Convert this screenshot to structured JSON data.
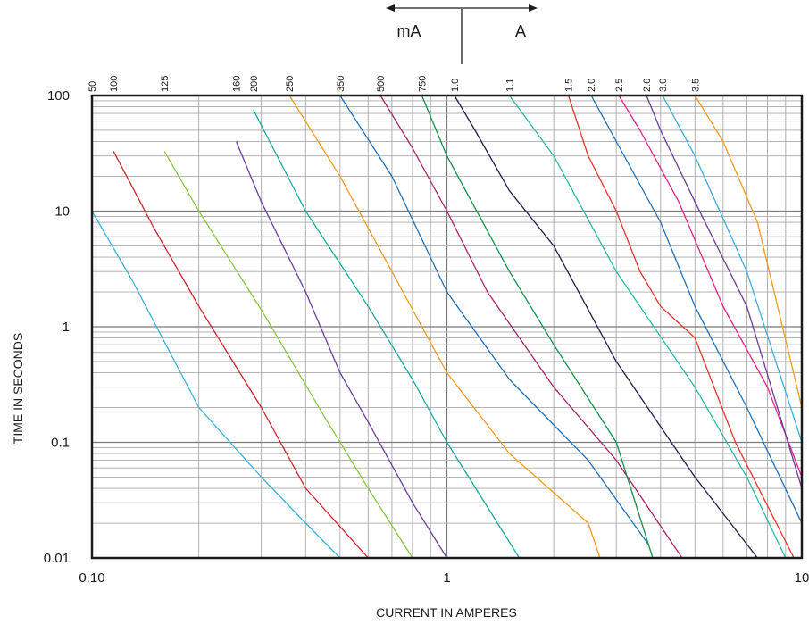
{
  "chart_data": {
    "type": "line",
    "xlabel": "CURRENT IN AMPERES",
    "ylabel": "TIME IN SECONDS",
    "x_scale": "log",
    "y_scale": "log",
    "xlim": [
      0.1,
      10
    ],
    "ylim": [
      0.01,
      100
    ],
    "x_tick_labels": [
      {
        "value": 0.1,
        "label": "0.10"
      },
      {
        "value": 1,
        "label": "1"
      },
      {
        "value": 10,
        "label": "10"
      }
    ],
    "y_tick_labels": [
      {
        "value": 100,
        "label": "100"
      },
      {
        "value": 10,
        "label": "10"
      },
      {
        "value": 1,
        "label": "1"
      },
      {
        "value": 0.1,
        "label": "0.1"
      },
      {
        "value": 0.01,
        "label": "0.01"
      }
    ],
    "unit_labels": {
      "left": "mA",
      "right": "A"
    },
    "grid": true,
    "series": [
      {
        "name": "50",
        "color": "#3ab0d9",
        "label_x": 0.1,
        "points": [
          [
            0.1,
            10
          ],
          [
            0.13,
            2.5
          ],
          [
            0.2,
            0.2
          ],
          [
            0.3,
            0.05
          ],
          [
            0.4,
            0.02
          ],
          [
            0.5,
            0.01
          ]
        ]
      },
      {
        "name": "100",
        "color": "#c8242f",
        "label_x": 0.115,
        "points": [
          [
            0.115,
            33
          ],
          [
            0.15,
            7
          ],
          [
            0.2,
            1.5
          ],
          [
            0.3,
            0.2
          ],
          [
            0.4,
            0.04
          ],
          [
            0.6,
            0.01
          ]
        ]
      },
      {
        "name": "125",
        "color": "#8bc540",
        "label_x": 0.16,
        "points": [
          [
            0.16,
            33
          ],
          [
            0.2,
            10
          ],
          [
            0.3,
            1.4
          ],
          [
            0.45,
            0.17
          ],
          [
            0.6,
            0.04
          ],
          [
            0.8,
            0.01
          ]
        ]
      },
      {
        "name": "160",
        "color": "#6a3d9a",
        "label_x": 0.255,
        "points": [
          [
            0.255,
            40
          ],
          [
            0.3,
            12
          ],
          [
            0.4,
            2
          ],
          [
            0.5,
            0.4
          ],
          [
            0.6,
            0.15
          ],
          [
            0.8,
            0.03
          ],
          [
            1.0,
            0.01
          ]
        ]
      },
      {
        "name": "200",
        "color": "#1aa6a0",
        "label_x": 0.285,
        "points": [
          [
            0.285,
            75
          ],
          [
            0.4,
            10
          ],
          [
            0.6,
            1.5
          ],
          [
            0.8,
            0.35
          ],
          [
            1.0,
            0.1
          ],
          [
            1.6,
            0.01
          ]
        ]
      },
      {
        "name": "250",
        "color": "#f39a21",
        "label_x": 0.36,
        "points": [
          [
            0.36,
            100
          ],
          [
            0.5,
            20
          ],
          [
            0.7,
            3
          ],
          [
            1.0,
            0.4
          ],
          [
            1.5,
            0.08
          ],
          [
            2.5,
            0.02
          ],
          [
            2.7,
            0.01
          ]
        ]
      },
      {
        "name": "350",
        "color": "#1f6fb4",
        "label_x": 0.5,
        "points": [
          [
            0.5,
            100
          ],
          [
            0.7,
            20
          ],
          [
            1.0,
            2
          ],
          [
            1.5,
            0.35
          ],
          [
            2.5,
            0.07
          ],
          [
            3.7,
            0.013
          ]
        ]
      },
      {
        "name": "500",
        "color": "#a3266b",
        "label_x": 0.65,
        "points": [
          [
            0.65,
            100
          ],
          [
            0.8,
            35
          ],
          [
            1.0,
            10
          ],
          [
            1.3,
            2
          ],
          [
            2.0,
            0.3
          ],
          [
            3.0,
            0.07
          ],
          [
            4.6,
            0.01
          ]
        ]
      },
      {
        "name": "750",
        "color": "#119147",
        "label_x": 0.85,
        "points": [
          [
            0.85,
            100
          ],
          [
            1.0,
            30
          ],
          [
            1.5,
            3
          ],
          [
            2.0,
            0.7
          ],
          [
            3.0,
            0.1
          ],
          [
            3.8,
            0.01
          ]
        ]
      },
      {
        "name": "1.0",
        "color": "#1c1e4a",
        "label_x": 1.05,
        "points": [
          [
            1.05,
            100
          ],
          [
            1.2,
            50
          ],
          [
            1.5,
            15
          ],
          [
            2.0,
            5
          ],
          [
            3.0,
            0.5
          ],
          [
            5.0,
            0.05
          ],
          [
            7.5,
            0.01
          ]
        ]
      },
      {
        "name": "1.1",
        "color": "#2bb7a9",
        "label_x": 1.5,
        "points": [
          [
            1.5,
            100
          ],
          [
            2.0,
            30
          ],
          [
            3.0,
            3
          ],
          [
            5.0,
            0.3
          ],
          [
            7.0,
            0.05
          ],
          [
            9.0,
            0.01
          ]
        ]
      },
      {
        "name": "1.5",
        "color": "#e2332b",
        "label_x": 2.2,
        "points": [
          [
            2.2,
            100
          ],
          [
            2.5,
            30
          ],
          [
            3.0,
            10
          ],
          [
            3.5,
            3
          ],
          [
            4.0,
            1.5
          ],
          [
            5.0,
            0.8
          ],
          [
            6.5,
            0.1
          ],
          [
            9.5,
            0.01
          ]
        ]
      },
      {
        "name": "2.0",
        "color": "#1f6fb4",
        "label_x": 2.55,
        "points": [
          [
            2.55,
            100
          ],
          [
            3.0,
            40
          ],
          [
            4.0,
            8
          ],
          [
            5.0,
            1.5
          ],
          [
            7.0,
            0.2
          ],
          [
            10,
            0.02
          ]
        ]
      },
      {
        "name": "2.5",
        "color": "#e0208a",
        "label_x": 3.05,
        "points": [
          [
            3.05,
            100
          ],
          [
            3.5,
            50
          ],
          [
            4.5,
            12
          ],
          [
            6.0,
            1.5
          ],
          [
            8.0,
            0.3
          ],
          [
            10,
            0.05
          ]
        ]
      },
      {
        "name": "2.6",
        "color": "#6a3d9a",
        "label_x": 3.65,
        "points": [
          [
            3.65,
            100
          ],
          [
            4.0,
            50
          ],
          [
            5.0,
            12
          ],
          [
            7.0,
            1.5
          ],
          [
            10,
            0.04
          ]
        ]
      },
      {
        "name": "3.0",
        "color": "#3ab0d9",
        "label_x": 4.05,
        "points": [
          [
            4.05,
            100
          ],
          [
            5.0,
            30
          ],
          [
            7.0,
            3
          ],
          [
            10,
            0.1
          ]
        ]
      },
      {
        "name": "3.5",
        "color": "#f39a21",
        "label_x": 5.0,
        "points": [
          [
            5.0,
            100
          ],
          [
            6.0,
            40
          ],
          [
            7.5,
            8
          ],
          [
            10,
            0.2
          ]
        ]
      }
    ]
  }
}
